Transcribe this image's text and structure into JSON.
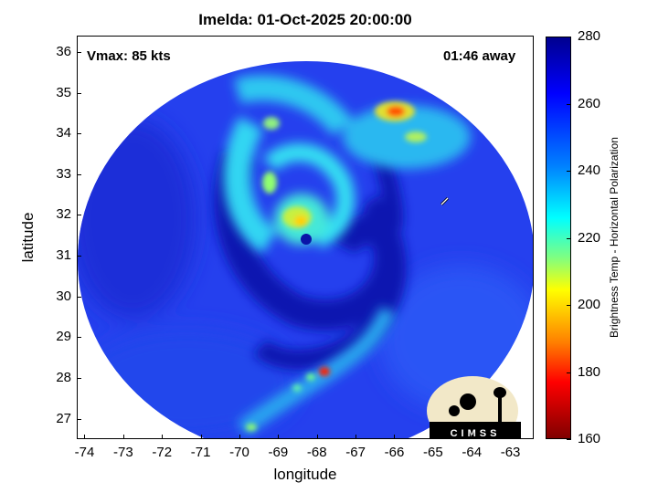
{
  "title": "Imelda: 01-Oct-2025 20:00:00",
  "overlay": {
    "vmax": "Vmax: 85 kts",
    "away": "01:46 away"
  },
  "logo_text": "CIMSS",
  "axes": {
    "xlabel": "longitude",
    "ylabel": "latitude",
    "xlim": [
      -74.2,
      -62.4
    ],
    "ylim": [
      26.5,
      36.4
    ],
    "xticks": [
      "-74",
      "-73",
      "-72",
      "-71",
      "-70",
      "-69",
      "-68",
      "-67",
      "-66",
      "-65",
      "-64",
      "-63"
    ],
    "yticks": [
      "27",
      "28",
      "29",
      "30",
      "31",
      "32",
      "33",
      "34",
      "35",
      "36"
    ]
  },
  "colorbar": {
    "label": "Brightness Temp - Horizontal Polarization",
    "range": [
      160,
      280
    ],
    "ticks": [
      "280",
      "260",
      "240",
      "220",
      "200",
      "180",
      "160"
    ],
    "colormap": "jet"
  },
  "storm": {
    "name": "Imelda",
    "center_lon": -68.1,
    "center_lat": 31.5
  },
  "colors": {
    "background_low": "#1e3cf0",
    "deep_blue": "#0a14b4",
    "cyan": "#30d0f0",
    "hot_red": "#ff2000"
  }
}
